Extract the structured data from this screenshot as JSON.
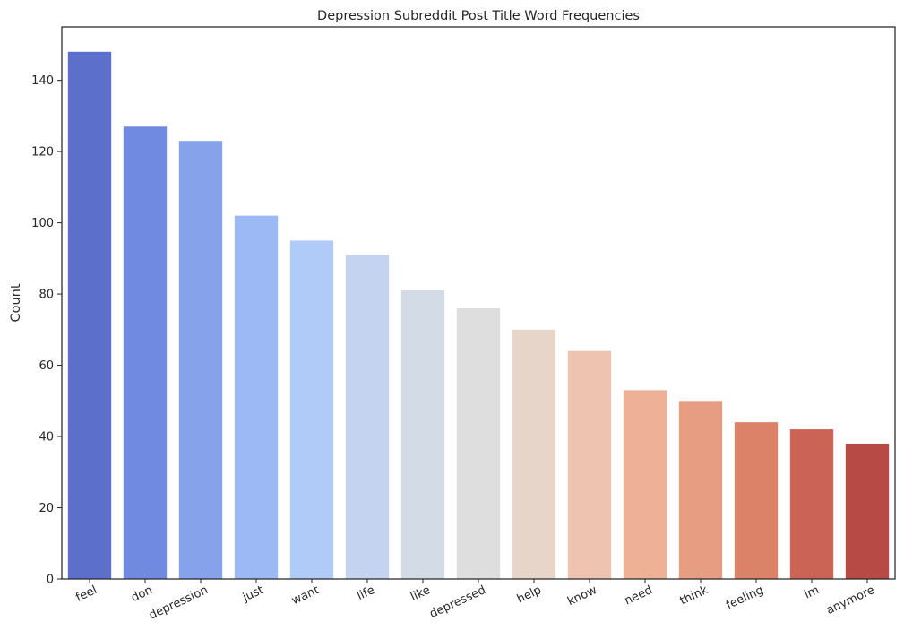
{
  "chart_data": {
    "type": "bar",
    "title": "Depression Subreddit Post Title Word Frequencies",
    "xlabel": "",
    "ylabel": "Count",
    "categories": [
      "feel",
      "don",
      "depression",
      "just",
      "want",
      "life",
      "like",
      "depressed",
      "help",
      "know",
      "need",
      "think",
      "feeling",
      "im",
      "anymore"
    ],
    "values": [
      148,
      127,
      123,
      102,
      95,
      91,
      81,
      76,
      70,
      64,
      53,
      50,
      44,
      42,
      38
    ],
    "colors": [
      "#5b6fcb",
      "#6f8ae0",
      "#86a2eb",
      "#9cb8f5",
      "#b1cbf8",
      "#c3d3f0",
      "#d3dbe6",
      "#dedede",
      "#e8d5c9",
      "#eec3af",
      "#eeb096",
      "#e69d82",
      "#dc8268",
      "#cc6455",
      "#b84a45"
    ],
    "ylim": [
      0,
      155
    ],
    "yticks": [
      0,
      20,
      40,
      60,
      80,
      100,
      120,
      140
    ],
    "xtick_rotation": "rotated ~25 degrees",
    "grid": false,
    "legend": "none",
    "axes_color": "#262626"
  }
}
